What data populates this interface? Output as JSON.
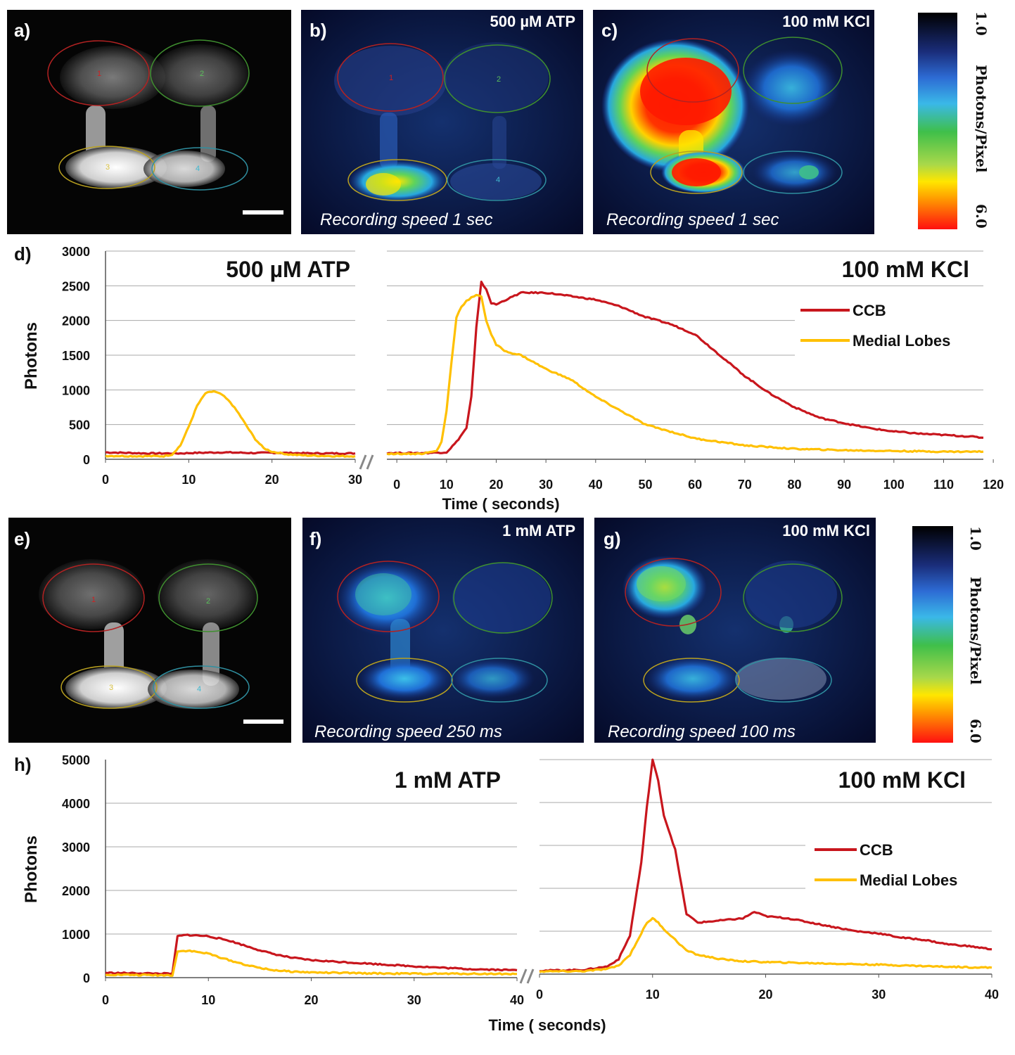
{
  "figure": {
    "panel_a": "a)",
    "panel_b": "b)",
    "panel_c": "c)",
    "panel_d": "d)",
    "panel_e": "e)",
    "panel_f": "f)",
    "panel_g": "g)",
    "panel_h": "h)"
  },
  "images": {
    "b_condition": "500 µM ATP",
    "c_condition": "100 mM KCl",
    "f_condition": "1 mM ATP",
    "g_condition": "100 mM KCl",
    "b_speed": "Recording speed 1 sec",
    "c_speed": "Recording speed 1 sec",
    "f_speed": "Recording speed 250 ms",
    "g_speed": "Recording speed 100 ms",
    "roi_labels": [
      "1",
      "2",
      "3",
      "4"
    ]
  },
  "colorbar": {
    "label": "Photons/Pixel",
    "top_value": "1.0",
    "bottom_value": "6.0"
  },
  "colors": {
    "ccb": "#c8161d",
    "medial": "#ffc000",
    "grid": "#a8a8a8"
  },
  "chart_data": [
    {
      "id": "d-atp",
      "type": "line",
      "title": "500 µM ATP",
      "ylabel": "Photons",
      "xlabel": "",
      "xlim": [
        0,
        30
      ],
      "ylim": [
        0,
        3000
      ],
      "xticks": [
        0,
        10,
        20,
        30
      ],
      "yticks": [
        0,
        500,
        1000,
        1500,
        2000,
        2500,
        3000
      ],
      "grid": true,
      "series": [
        {
          "name": "CCB",
          "color": "#c8161d",
          "x": [
            0,
            5,
            9,
            10,
            12,
            14,
            16,
            18,
            20,
            25,
            30
          ],
          "y": [
            100,
            85,
            85,
            90,
            95,
            100,
            95,
            90,
            95,
            85,
            85
          ]
        },
        {
          "name": "Medial Lobes",
          "color": "#ffc000",
          "x": [
            0,
            4,
            7,
            8,
            9,
            10,
            11,
            12,
            13,
            14,
            15,
            16,
            17,
            18,
            19,
            20,
            21,
            22,
            24,
            26,
            28,
            30
          ],
          "y": [
            50,
            45,
            45,
            70,
            200,
            470,
            770,
            950,
            980,
            930,
            820,
            660,
            470,
            290,
            160,
            110,
            90,
            70,
            55,
            50,
            45,
            45
          ]
        }
      ]
    },
    {
      "id": "d-kcl",
      "type": "line",
      "title": "100 mM KCl",
      "ylabel": "",
      "xlabel": "Time ( seconds)",
      "xlim": [
        -2,
        118
      ],
      "ylim": [
        0,
        3000
      ],
      "xticks": [
        0,
        10,
        20,
        30,
        40,
        50,
        60,
        70,
        80,
        90,
        100,
        110,
        120
      ],
      "yticks": [],
      "grid": true,
      "legend_position": "top-right",
      "series": [
        {
          "name": "CCB",
          "color": "#c8161d",
          "x": [
            -2,
            5,
            10,
            12,
            14,
            15,
            16,
            17,
            18,
            19,
            20,
            22,
            25,
            30,
            35,
            40,
            45,
            50,
            55,
            60,
            65,
            70,
            75,
            80,
            85,
            90,
            95,
            100,
            105,
            110,
            115,
            118
          ],
          "y": [
            90,
            90,
            100,
            250,
            450,
            900,
            1900,
            2550,
            2450,
            2250,
            2230,
            2300,
            2400,
            2400,
            2350,
            2300,
            2200,
            2050,
            1950,
            1800,
            1500,
            1200,
            950,
            750,
            600,
            520,
            450,
            400,
            370,
            350,
            330,
            310
          ]
        },
        {
          "name": "Medial Lobes",
          "color": "#ffc000",
          "x": [
            -2,
            5,
            8,
            9,
            10,
            11,
            12,
            13,
            14,
            15,
            16,
            17,
            18,
            19,
            20,
            22,
            25,
            30,
            35,
            40,
            45,
            50,
            55,
            60,
            70,
            80,
            90,
            100,
            110,
            118
          ],
          "y": [
            80,
            80,
            120,
            250,
            700,
            1400,
            2050,
            2200,
            2280,
            2330,
            2360,
            2350,
            2000,
            1800,
            1650,
            1550,
            1500,
            1300,
            1150,
            900,
            700,
            500,
            400,
            300,
            200,
            150,
            130,
            120,
            110,
            110
          ]
        }
      ]
    },
    {
      "id": "h-atp",
      "type": "line",
      "title": "1 mM ATP",
      "ylabel": "Photons",
      "xlabel": "",
      "xlim": [
        0,
        40
      ],
      "ylim": [
        0,
        5000
      ],
      "xticks": [
        0,
        10,
        20,
        30,
        40
      ],
      "yticks": [
        0,
        1000,
        2000,
        3000,
        4000,
        5000
      ],
      "grid": true,
      "series": [
        {
          "name": "CCB",
          "color": "#c8161d",
          "x": [
            0,
            3,
            6.5,
            7,
            8,
            10,
            12,
            14,
            16,
            18,
            20,
            25,
            30,
            35,
            40
          ],
          "y": [
            110,
            100,
            90,
            950,
            980,
            950,
            850,
            700,
            560,
            460,
            400,
            330,
            260,
            200,
            170
          ]
        },
        {
          "name": "Medial Lobes",
          "color": "#ffc000",
          "x": [
            0,
            3,
            6.5,
            7,
            8,
            10,
            12,
            14,
            16,
            18,
            20,
            25,
            30,
            35,
            40
          ],
          "y": [
            70,
            60,
            55,
            600,
            620,
            550,
            400,
            270,
            180,
            140,
            120,
            100,
            90,
            90,
            85
          ]
        }
      ]
    },
    {
      "id": "h-kcl",
      "type": "line",
      "title": "100 mM KCl",
      "ylabel": "",
      "xlabel": "Time ( seconds)",
      "xlim": [
        0,
        40
      ],
      "ylim": [
        0,
        5000
      ],
      "xticks": [
        0,
        10,
        20,
        30,
        40
      ],
      "yticks": [],
      "grid": true,
      "legend_position": "center-right",
      "series": [
        {
          "name": "CCB",
          "color": "#c8161d",
          "x": [
            0,
            4,
            6,
            7,
            8,
            9,
            9.5,
            10,
            10.5,
            11,
            12,
            13,
            14,
            16,
            18,
            19,
            20,
            22,
            24,
            26,
            28,
            30,
            32,
            34,
            36,
            38,
            40
          ],
          "y": [
            80,
            100,
            180,
            350,
            900,
            2600,
            3900,
            5000,
            4500,
            3700,
            2900,
            1400,
            1200,
            1250,
            1300,
            1450,
            1350,
            1300,
            1200,
            1100,
            1000,
            950,
            850,
            800,
            700,
            650,
            580
          ]
        },
        {
          "name": "Medial Lobes",
          "color": "#ffc000",
          "x": [
            0,
            4,
            6,
            7,
            8,
            9,
            9.5,
            10,
            10.5,
            11,
            12,
            13,
            14,
            16,
            18,
            20,
            25,
            30,
            35,
            40
          ],
          "y": [
            60,
            70,
            120,
            200,
            450,
            950,
            1200,
            1300,
            1200,
            1050,
            800,
            550,
            450,
            350,
            300,
            280,
            250,
            220,
            180,
            150
          ]
        }
      ]
    }
  ]
}
